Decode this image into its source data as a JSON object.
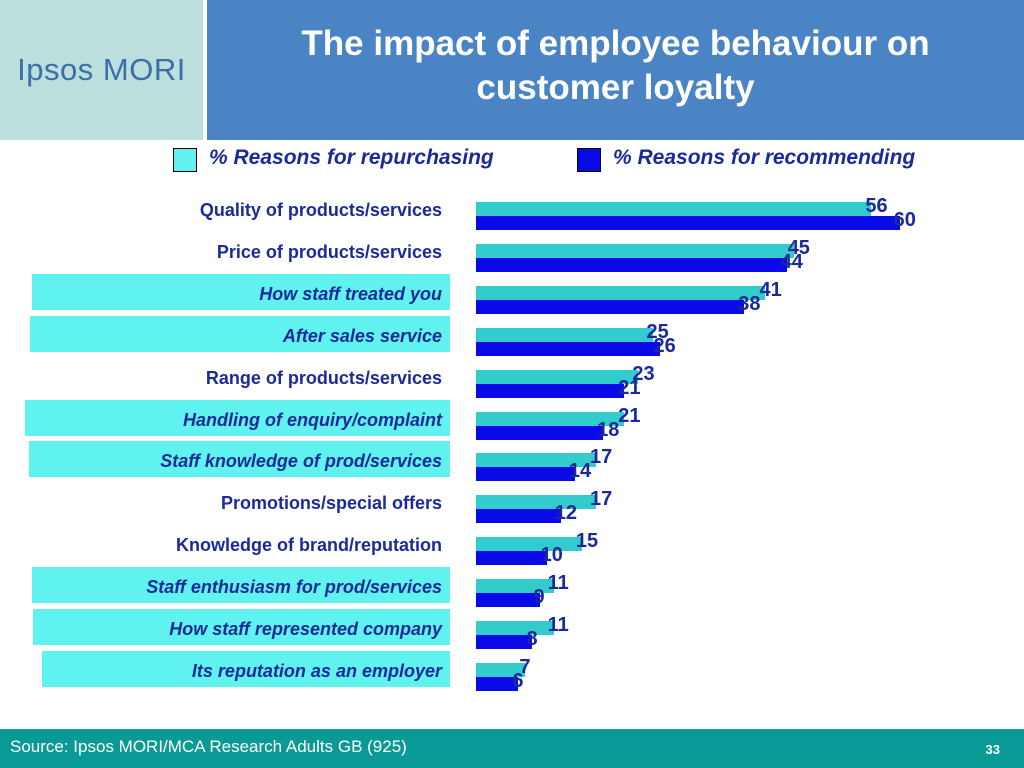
{
  "logo": "Ipsos MORI",
  "title_lines": [
    "The impact of employee behaviour on",
    "customer loyalty"
  ],
  "footer": {
    "source": "Source: Ipsos MORI/MCA Research Adults GB (925)",
    "page": "33"
  },
  "colors": {
    "repurchasing": "#33cccc",
    "recommending": "#0a0ae8",
    "highlight": "#5ff2ee",
    "header": "#4a84c4",
    "footer": "#0a9a96"
  },
  "chart_data": {
    "type": "bar",
    "orientation": "horizontal",
    "legend_position": "top",
    "xlim": [
      0,
      70
    ],
    "grid": false,
    "categories": [
      "Quality of products/services",
      "Price of products/services",
      "How staff treated you",
      "After sales service",
      "Range of products/services",
      "Handling of enquiry/complaint",
      "Staff knowledge of prod/services",
      "Promotions/special offers",
      "Knowledge of brand/reputation",
      "Staff enthusiasm for prod/services",
      "How staff represented company",
      "Its reputation as an employer"
    ],
    "highlighted": [
      false,
      false,
      true,
      true,
      false,
      true,
      true,
      false,
      false,
      true,
      true,
      true
    ],
    "series": [
      {
        "name": "% Reasons for repurchasing",
        "values": [
          56,
          45,
          41,
          25,
          23,
          21,
          17,
          17,
          15,
          11,
          11,
          7
        ]
      },
      {
        "name": "% Reasons for recommending",
        "values": [
          60,
          44,
          38,
          26,
          21,
          18,
          14,
          12,
          10,
          9,
          8,
          6
        ]
      }
    ]
  }
}
